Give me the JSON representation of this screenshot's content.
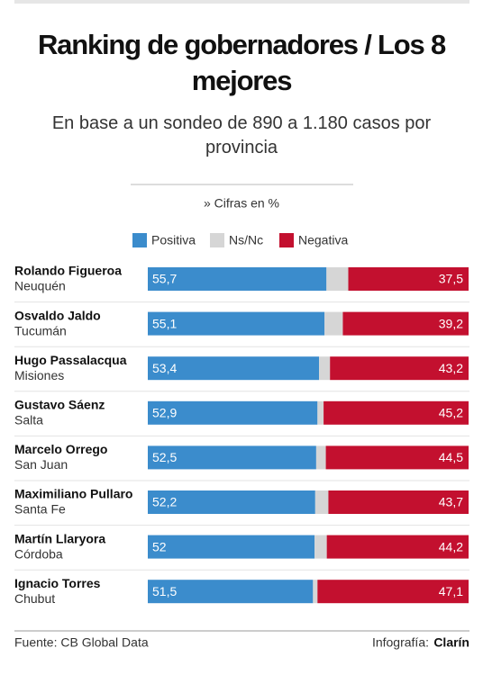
{
  "chart_data": {
    "type": "stacked-bar-horizontal",
    "title": "Ranking de gobernadores / Los 8 mejores",
    "subtitle": "En base a un sondeo de 890 a 1.180 casos por provincia",
    "note": "» Cifras en %",
    "categories": [
      "Rolando Figueroa",
      "Osvaldo Jaldo",
      "Hugo Passalacqua",
      "Gustavo Sáenz",
      "Marcelo Orrego",
      "Maximiliano Pullaro",
      "Martín Llaryora",
      "Ignacio Torres"
    ],
    "subcategories": [
      "Neuquén",
      "Tucumán",
      "Misiones",
      "Salta",
      "San Juan",
      "Santa Fe",
      "Córdoba",
      "Chubut"
    ],
    "xlim": [
      0,
      100
    ],
    "series": [
      {
        "name": "Positiva",
        "color": "#3b8ccc",
        "values": [
          55.7,
          55.1,
          53.4,
          52.9,
          52.5,
          52.2,
          52,
          51.5
        ],
        "value_labels": [
          "55,7",
          "55,1",
          "53,4",
          "52,9",
          "52,5",
          "52,2",
          "52",
          "51,5"
        ]
      },
      {
        "name": "Ns/Nc",
        "color": "#d6d6d6",
        "values": [
          6.8,
          5.7,
          3.4,
          1.9,
          3.0,
          4.1,
          3.8,
          1.4
        ]
      },
      {
        "name": "Negativa",
        "color": "#c3102f",
        "values": [
          37.5,
          39.2,
          43.2,
          45.2,
          44.5,
          43.7,
          44.2,
          47.1
        ],
        "value_labels": [
          "37,5",
          "39,2",
          "43,2",
          "45,2",
          "44,5",
          "43,7",
          "44,2",
          "47,1"
        ]
      }
    ],
    "source": "Fuente: CB Global Data",
    "credit_label": "Infografía:",
    "credit_brand": "Clarín"
  }
}
